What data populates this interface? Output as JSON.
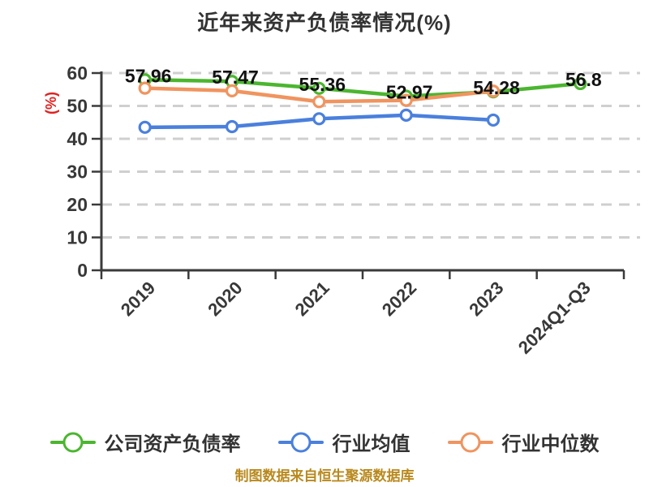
{
  "title": "近年来资产负债率情况(%)",
  "y_axis_name": "(%)",
  "footer_note": "制图数据来自恒生聚源数据库",
  "colors": {
    "background": "#ffffff",
    "title_text": "#333333",
    "axis": "#3a3a3a",
    "tick_label": "#383838",
    "gridline": "#cfcfcf",
    "data_label": "#111111",
    "y_axis_name_text": "#e02222",
    "footer_text": "#b9891e",
    "series_company": "#4bb62f",
    "series_industry_mean": "#4a80dd",
    "series_industry_median": "#f0945f",
    "marker_fill": "#ffffff"
  },
  "chart_data": {
    "type": "line",
    "title": "近年来资产负债率情况(%)",
    "categories": [
      "2019",
      "2020",
      "2021",
      "2022",
      "2023",
      "2024Q1-Q3"
    ],
    "xlabel": "",
    "ylabel": "(%)",
    "ylim": [
      0,
      60
    ],
    "y_ticks": [
      0,
      10,
      20,
      30,
      40,
      50,
      60
    ],
    "grid": "horizontal-dashed",
    "legend_position": "bottom",
    "series": [
      {
        "name": "公司资产负债率",
        "color": "#4bb62f",
        "values": [
          57.96,
          57.47,
          55.36,
          52.97,
          54.28,
          56.8
        ],
        "labels": [
          "57.96",
          "57.47",
          "55.36",
          "52.97",
          "54.28",
          "56.8"
        ]
      },
      {
        "name": "行业均值",
        "color": "#4a80dd",
        "values": [
          43.5,
          43.7,
          46.1,
          47.2,
          45.7,
          null
        ],
        "labels": null
      },
      {
        "name": "行业中位数",
        "color": "#f0945f",
        "values": [
          55.4,
          54.6,
          51.3,
          51.7,
          54.5,
          null
        ],
        "labels": null
      }
    ]
  }
}
